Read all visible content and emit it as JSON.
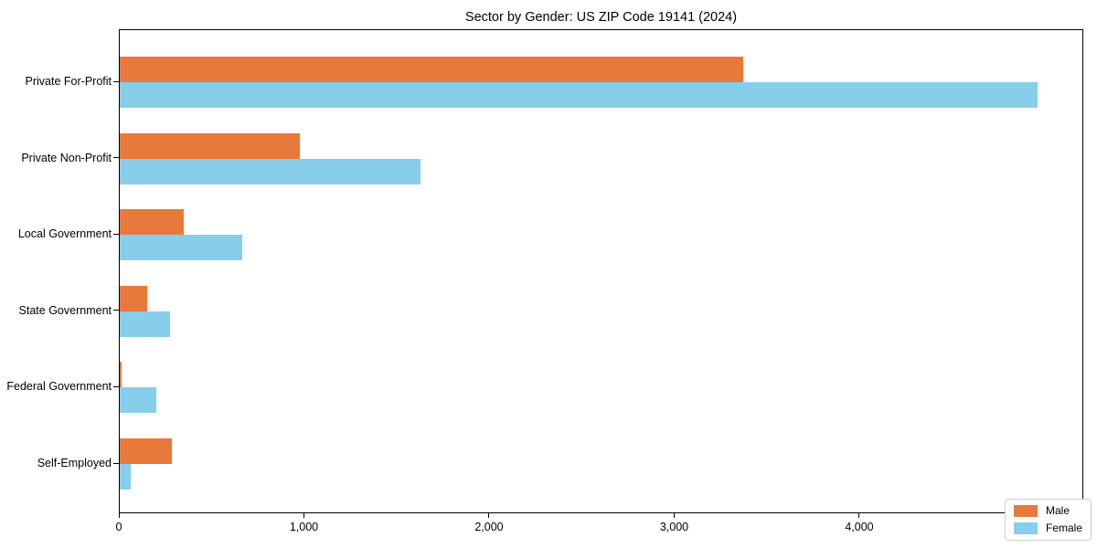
{
  "chart_data": {
    "type": "bar",
    "orientation": "horizontal",
    "title": "Sector by Gender: US ZIP Code 19141 (2024)",
    "xlabel": "",
    "ylabel": "",
    "grid": false,
    "legend_position": "lower right",
    "categories": [
      "Private For-Profit",
      "Private Non-Profit",
      "Local Government",
      "State Government",
      "Federal Government",
      "Self-Employed"
    ],
    "series": [
      {
        "name": "Male",
        "color": "#e8793d",
        "values": [
          3370,
          975,
          345,
          150,
          8,
          280
        ]
      },
      {
        "name": "Female",
        "color": "#87ceeb",
        "values": [
          4960,
          1625,
          660,
          270,
          200,
          60
        ]
      }
    ],
    "xlim": [
      0,
      5210
    ],
    "x_ticks": [
      {
        "value": 0,
        "label": "0"
      },
      {
        "value": 1000,
        "label": "1,000"
      },
      {
        "value": 2000,
        "label": "2,000"
      },
      {
        "value": 3000,
        "label": "3,000"
      },
      {
        "value": 4000,
        "label": "4,000"
      },
      {
        "value": 5000,
        "label": "5,000"
      }
    ],
    "colors": {
      "axis": "#000000",
      "legend_border": "#cccccc",
      "background": "#ffffff"
    }
  }
}
